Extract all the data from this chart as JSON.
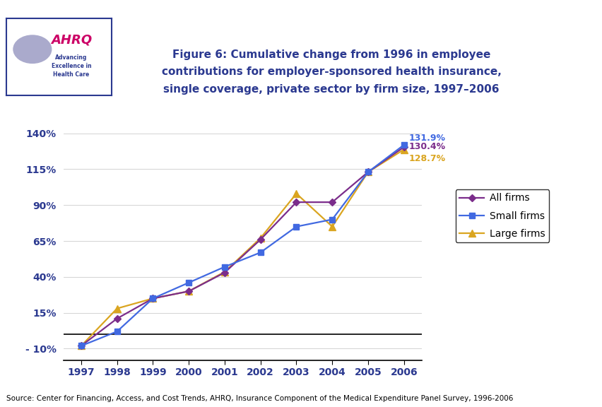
{
  "years": [
    1997,
    1998,
    1999,
    2000,
    2001,
    2002,
    2003,
    2004,
    2005,
    2006
  ],
  "all_firms": [
    -8.0,
    11.0,
    25.0,
    30.0,
    43.0,
    66.0,
    92.0,
    92.0,
    113.0,
    130.4
  ],
  "small_firms": [
    -8.0,
    2.0,
    25.0,
    36.0,
    47.0,
    57.0,
    75.0,
    80.0,
    113.0,
    131.9
  ],
  "large_firms": [
    -8.0,
    18.0,
    25.0,
    30.0,
    43.5,
    67.0,
    98.0,
    75.0,
    113.0,
    128.7
  ],
  "all_firms_color": "#7B2D8B",
  "small_firms_color": "#4169E1",
  "large_firms_color": "#DAA520",
  "all_firms_label": "All firms",
  "small_firms_label": "Small firms",
  "large_firms_label": "Large firms",
  "end_label_all": "130.4%",
  "end_label_small": "131.9%",
  "end_label_large": "128.7%",
  "title_line1": "Figure 6: Cumulative change from 1996 in employee",
  "title_line2": "contributions for employer-sponsored health insurance,",
  "title_line3": "single coverage, private sector by firm size, 1997–2006",
  "source_text": "Source: Center for Financing, Access, and Cost Trends, AHRQ, Insurance Component of the Medical Expenditure Panel Survey, 1996-2006",
  "yticks": [
    -10,
    15,
    40,
    65,
    90,
    115,
    140
  ],
  "ytick_labels": [
    "- 10%",
    "15%",
    "40%",
    "65%",
    "90%",
    "115%",
    "140%"
  ],
  "ylim": [
    -18,
    152
  ],
  "border_color": "#2B3990",
  "title_color": "#2B3990",
  "background_color": "#FFFFFF",
  "legend_label_color": "#000000"
}
